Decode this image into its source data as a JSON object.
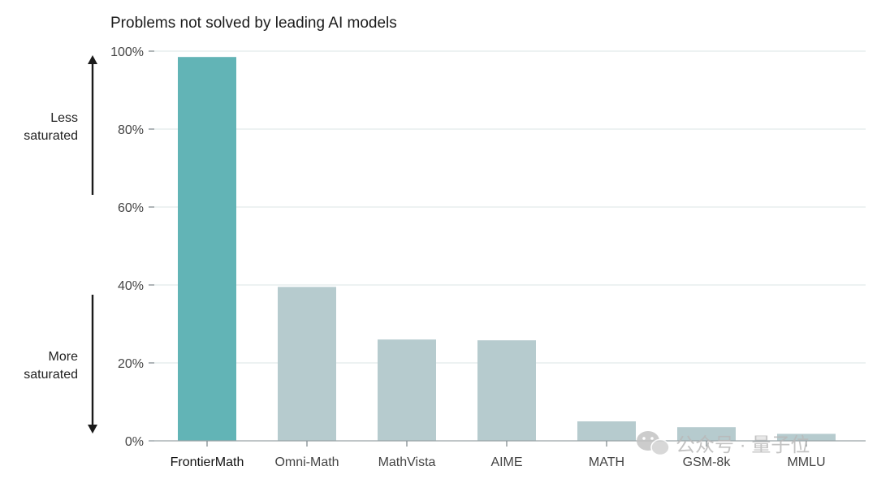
{
  "chart_data": {
    "type": "bar",
    "title": "Problems not solved by leading AI models",
    "xlabel": "",
    "ylabel": "",
    "ylim": [
      0,
      100
    ],
    "yticks": [
      0,
      20,
      40,
      60,
      80,
      100
    ],
    "ytick_labels": [
      "0%",
      "20%",
      "40%",
      "60%",
      "80%",
      "100%"
    ],
    "categories": [
      "FrontierMath",
      "Omni-Math",
      "MathVista",
      "AIME",
      "MATH",
      "GSM-8k",
      "MMLU"
    ],
    "values": [
      98.5,
      39.5,
      26,
      25.8,
      5,
      3.5,
      1.8
    ],
    "grid": true,
    "highlight_category": "FrontierMath",
    "annotations": {
      "top": [
        "Less",
        "saturated"
      ],
      "bottom": [
        "More",
        "saturated"
      ]
    }
  },
  "colors": {
    "highlight_bar": "#62b4b6",
    "other_bar": "#b6cbce"
  },
  "watermark": {
    "text": "公众号 · 量子位",
    "icon": "wechat-icon"
  }
}
